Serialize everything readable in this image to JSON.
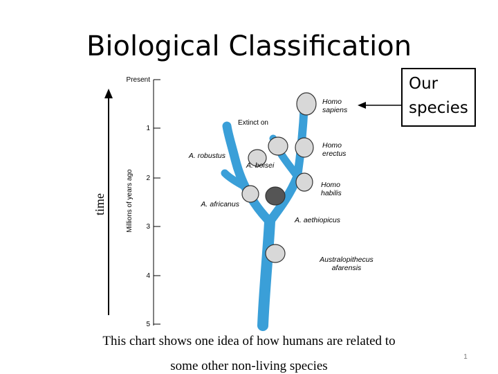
{
  "header": {
    "title": "Biological Classification"
  },
  "callout": {
    "lines": [
      "Our",
      "species"
    ]
  },
  "time_axis": {
    "label": "time"
  },
  "scale": {
    "label": "Millions of years ago",
    "ticks": [
      "Present",
      1,
      2,
      3,
      4,
      5
    ]
  },
  "tree": {
    "extinct_label": "Extinct on",
    "species": [
      {
        "lines": [
          "Homo",
          "sapiens"
        ]
      },
      {
        "lines": [
          "Homo",
          "erectus"
        ]
      },
      {
        "lines": [
          "Homo",
          "habilis"
        ]
      },
      {
        "lines": [
          "A. robustus"
        ]
      },
      {
        "lines": [
          "A. boisei"
        ]
      },
      {
        "lines": [
          "A. africanus"
        ]
      },
      {
        "lines": [
          "A. aethiopicus"
        ]
      },
      {
        "lines": [
          "Australopithecus",
          "afarensis"
        ]
      }
    ]
  },
  "caption": {
    "lines": [
      "This chart shows one idea of how humans are related to",
      "some other non-living species"
    ]
  },
  "footer": {
    "page_number": 1
  }
}
